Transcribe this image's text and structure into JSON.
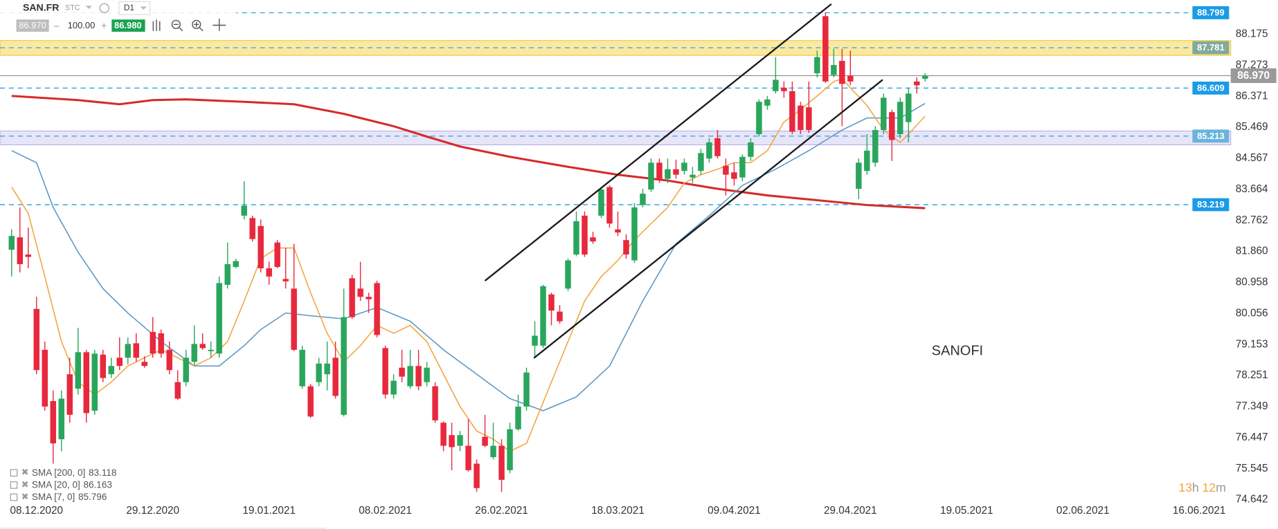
{
  "header": {
    "symbol": "SAN.FR",
    "instrument_type": "STC",
    "timeframe": "D1",
    "bid": "86.970",
    "volume": "100.00",
    "ask": "86.980"
  },
  "chart_data": {
    "type": "candlestick",
    "annotation": "SANOFI",
    "timer": [
      "13",
      "h",
      "12",
      "m"
    ],
    "up_color": "#2aa65c",
    "down_color": "#e8283d",
    "open": [
      81.91,
      82.27,
      81.77,
      80.19,
      79.0,
      77.51,
      76.4,
      78.29,
      77.87,
      78.93,
      77.23,
      78.86,
      78.29,
      78.77,
      78.77,
      79.19,
      78.65,
      79.52,
      79.48,
      79.0,
      78.06,
      78.06,
      78.65,
      79.17,
      78.96,
      78.89,
      80.89,
      81.41,
      82.9,
      82.83,
      82.6,
      81.37,
      82.12,
      81.06,
      80.78,
      77.94,
      77.94,
      78.06,
      78.29,
      78.77,
      77.11,
      81.08,
      80.78,
      80.54,
      80.94,
      79.05,
      77.7,
      78.48,
      77.94,
      78.53,
      78.06,
      77.94,
      76.88,
      76.52,
      76.21,
      76.21,
      75.69,
      76.47,
      75.88,
      76.21,
      75.5,
      76.69,
      77.35,
      79.12,
      79.12,
      80.61,
      80.11,
      80.78,
      81.77,
      82.9,
      82.27,
      82.9,
      83.73,
      82.5,
      82.19,
      81.6,
      83.21,
      83.66,
      84.44,
      83.97,
      84.25,
      84.2,
      84.01,
      84.2,
      84.56,
      85.15,
      84.35,
      84.16,
      84.01,
      84.61,
      85.27,
      86.1,
      86.52,
      86.62,
      86.52,
      86.1,
      86.05,
      87.04,
      88.7,
      86.99,
      87.4,
      86.97,
      83.68,
      84.2,
      84.44,
      85.39,
      85.91,
      85.27,
      85.62,
      86.8,
      86.88
    ],
    "high": [
      82.5,
      83.14,
      82.55,
      80.54,
      79.24,
      77.82,
      77.82,
      78.77,
      79.64,
      79.0,
      79.0,
      79.0,
      78.77,
      79.36,
      79.36,
      79.48,
      78.81,
      79.95,
      79.59,
      79.24,
      78.41,
      79.0,
      79.71,
      79.48,
      79.24,
      81.13,
      82.12,
      81.65,
      83.9,
      82.9,
      82.79,
      81.56,
      82.19,
      81.96,
      82.08,
      79.12,
      78.01,
      78.77,
      79.24,
      79.24,
      80.78,
      81.18,
      81.56,
      80.66,
      81.01,
      79.12,
      78.29,
      79.0,
      79.0,
      79.0,
      78.65,
      78.06,
      76.92,
      76.88,
      76.64,
      76.99,
      75.81,
      77.11,
      76.88,
      76.4,
      76.88,
      77.7,
      78.48,
      79.83,
      80.89,
      80.66,
      80.3,
      81.65,
      83.02,
      83.02,
      82.43,
      83.73,
      83.78,
      83.02,
      82.36,
      83.26,
      83.68,
      84.56,
      84.56,
      84.56,
      84.53,
      84.56,
      84.32,
      84.84,
      85.15,
      85.39,
      84.56,
      84.44,
      84.68,
      85.15,
      86.28,
      86.38,
      87.51,
      86.8,
      86.8,
      86.21,
      86.8,
      87.7,
      88.81,
      87.75,
      87.75,
      87.7,
      84.56,
      85.27,
      85.5,
      86.45,
      85.98,
      86.33,
      86.62,
      86.92,
      87.04
    ],
    "low": [
      81.13,
      81.25,
      81.37,
      78.29,
      77.23,
      75.69,
      76.05,
      76.88,
      77.7,
      76.88,
      77.11,
      78.06,
      78.18,
      78.41,
      78.58,
      78.65,
      78.48,
      78.77,
      78.77,
      78.29,
      77.54,
      77.94,
      78.53,
      79.0,
      78.77,
      78.77,
      80.78,
      81.37,
      82.79,
      82.15,
      81.25,
      80.89,
      81.37,
      80.78,
      78.96,
      77.87,
      77.02,
      77.94,
      77.82,
      77.58,
      77.06,
      79.9,
      80.42,
      80.07,
      79.36,
      77.58,
      77.58,
      78.06,
      77.87,
      77.82,
      77.94,
      76.88,
      76.05,
      75.5,
      76.05,
      75.46,
      74.87,
      76.17,
      75.81,
      74.87,
      75.41,
      76.64,
      77.23,
      78.77,
      79.05,
      79.71,
      79.76,
      80.71,
      81.72,
      81.7,
      82.08,
      82.83,
      82.55,
      82.31,
      81.65,
      81.53,
      83.14,
      83.59,
      83.85,
      83.85,
      83.97,
      84.09,
      83.85,
      84.09,
      84.44,
      84.56,
      83.49,
      83.78,
      83.9,
      84.49,
      85.2,
      85.98,
      86.45,
      86.33,
      85.27,
      85.27,
      85.31,
      86.92,
      86.76,
      86.92,
      85.5,
      86.69,
      83.38,
      84.09,
      84.32,
      85.27,
      84.49,
      85.15,
      85.03,
      86.45,
      86.8
    ],
    "close": [
      82.31,
      81.49,
      81.7,
      78.41,
      77.35,
      76.28,
      77.58,
      77.11,
      78.93,
      77.16,
      78.89,
      78.18,
      78.53,
      78.53,
      79.17,
      78.77,
      78.53,
      78.89,
      78.89,
      78.41,
      77.58,
      78.77,
      79.17,
      79.05,
      79.0,
      80.94,
      81.49,
      81.58,
      83.19,
      82.22,
      81.37,
      81.13,
      81.41,
      80.99,
      79.0,
      79.0,
      77.06,
      78.6,
      78.6,
      77.66,
      79.95,
      79.95,
      80.54,
      80.47,
      79.43,
      77.7,
      78.1,
      78.22,
      78.53,
      77.94,
      78.48,
      76.95,
      76.21,
      76.17,
      76.52,
      75.5,
      74.98,
      76.21,
      76.21,
      75.22,
      76.69,
      77.35,
      78.34,
      79.41,
      80.85,
      80.14,
      79.83,
      81.6,
      82.74,
      81.77,
      82.15,
      83.66,
      82.67,
      82.41,
      81.77,
      83.14,
      83.54,
      84.44,
      83.97,
      84.25,
      84.09,
      84.44,
      84.09,
      84.72,
      85.03,
      84.63,
      84.09,
      83.97,
      84.61,
      85.03,
      86.21,
      86.28,
      86.85,
      86.52,
      85.34,
      85.39,
      85.39,
      87.51,
      86.8,
      87.28,
      86.73,
      86.8,
      84.44,
      84.79,
      85.39,
      86.33,
      85.1,
      86.21,
      86.45,
      86.69,
      86.97
    ],
    "series": [
      {
        "name": "SMA [200, 0]",
        "color": "#d62a2a",
        "x": [
          0,
          8,
          13,
          17,
          21,
          28,
          34,
          40,
          46,
          50,
          54,
          60,
          67,
          73,
          79,
          85,
          91,
          97,
          103,
          110
        ],
        "values": [
          86.38,
          86.26,
          86.14,
          86.26,
          86.28,
          86.21,
          86.14,
          85.86,
          85.5,
          85.2,
          84.91,
          84.61,
          84.32,
          84.09,
          83.92,
          83.68,
          83.49,
          83.35,
          83.21,
          83.118
        ]
      },
      {
        "name": "SMA [20, 0]",
        "color": "#5b95c0",
        "x": [
          0,
          3,
          5,
          8,
          11,
          14,
          18,
          22,
          25,
          28,
          30,
          33,
          36,
          40,
          44,
          48,
          52,
          56,
          60,
          64,
          68,
          72,
          76,
          80,
          84,
          88,
          92,
          96,
          100,
          103,
          107,
          110
        ],
        "values": [
          84.79,
          84.44,
          83.14,
          81.84,
          80.78,
          80.07,
          79.24,
          78.53,
          78.53,
          79.12,
          79.59,
          80.07,
          79.99,
          79.9,
          80.23,
          79.83,
          79.0,
          78.29,
          77.58,
          77.23,
          77.63,
          78.53,
          80.42,
          82.08,
          82.9,
          83.78,
          84.25,
          84.79,
          85.39,
          85.74,
          85.74,
          86.163
        ]
      },
      {
        "name": "SMA [7, 0]",
        "color": "#f2a33a",
        "x": [
          0,
          2,
          4,
          6,
          8,
          10,
          12,
          14,
          16,
          18,
          20,
          22,
          24,
          26,
          28,
          30,
          32,
          34,
          36,
          38,
          40,
          42,
          44,
          46,
          48,
          50,
          52,
          54,
          56,
          58,
          60,
          62,
          63,
          65,
          67,
          69,
          71,
          73,
          75,
          77,
          79,
          81,
          83,
          85,
          87,
          89,
          91,
          93,
          95,
          97,
          99,
          100,
          101,
          103,
          105,
          107,
          108,
          110
        ],
        "values": [
          83.73,
          82.97,
          81.13,
          79.24,
          78.06,
          77.7,
          78.06,
          78.53,
          78.77,
          79.0,
          78.77,
          78.53,
          78.77,
          79.24,
          80.42,
          81.65,
          81.96,
          81.96,
          80.66,
          79.48,
          78.65,
          79.12,
          79.71,
          79.48,
          79.71,
          79.24,
          78.29,
          77.35,
          76.64,
          76.4,
          76.05,
          76.28,
          76.88,
          78.06,
          79.24,
          80.42,
          81.13,
          81.6,
          82.19,
          82.67,
          83.14,
          83.85,
          84.09,
          84.25,
          84.44,
          84.44,
          84.79,
          85.62,
          85.98,
          86.38,
          86.8,
          86.88,
          86.62,
          86.1,
          85.39,
          85.03,
          85.27,
          85.796
        ]
      }
    ],
    "levels": [
      {
        "value": 88.799,
        "color": "#1a9be6"
      },
      {
        "value": 87.781,
        "color": "#80aa9c"
      },
      {
        "value": 86.609,
        "color": "#1a9be6"
      },
      {
        "value": 85.213,
        "color": "#6ab4dc"
      },
      {
        "value": 83.219,
        "color": "#1a9be6"
      }
    ],
    "zones": [
      {
        "from": 87.56,
        "to": 87.99,
        "color": "#fbe9a0",
        "border": "#f0c84a"
      },
      {
        "from": 84.96,
        "to": 85.36,
        "color": "#e8e5f8",
        "border": "#b9b2ec"
      }
    ],
    "current": {
      "value": 86.97,
      "label": "86.970"
    },
    "ylim": [
      74.5,
      89.17
    ],
    "yticks": [
      88.175,
      87.273,
      86.371,
      85.469,
      84.567,
      83.664,
      82.762,
      {
        "value": 81.86,
        "label": "81.860"
      },
      80.958,
      80.056,
      79.153,
      78.251,
      77.349,
      76.447,
      75.545,
      74.642
    ],
    "xlim": [
      -1.4,
      146.8
    ],
    "xticks": [
      {
        "value": 3,
        "label": "08.12.2020"
      },
      {
        "value": 17,
        "label": "29.12.2020"
      },
      {
        "value": 31,
        "label": "19.01.2021"
      },
      {
        "value": 45,
        "label": "08.02.2021"
      },
      {
        "value": 59,
        "label": "26.02.2021"
      },
      {
        "value": 73,
        "label": "18.03.2021"
      },
      {
        "value": 87,
        "label": "09.04.2021"
      },
      {
        "value": 101,
        "label": "29.04.2021"
      },
      {
        "value": 115,
        "label": "19.05.2021"
      },
      {
        "value": 129,
        "label": "02.06.2021"
      },
      {
        "value": 143,
        "label": "16.06.2021"
      }
    ],
    "grid": false
  }
}
